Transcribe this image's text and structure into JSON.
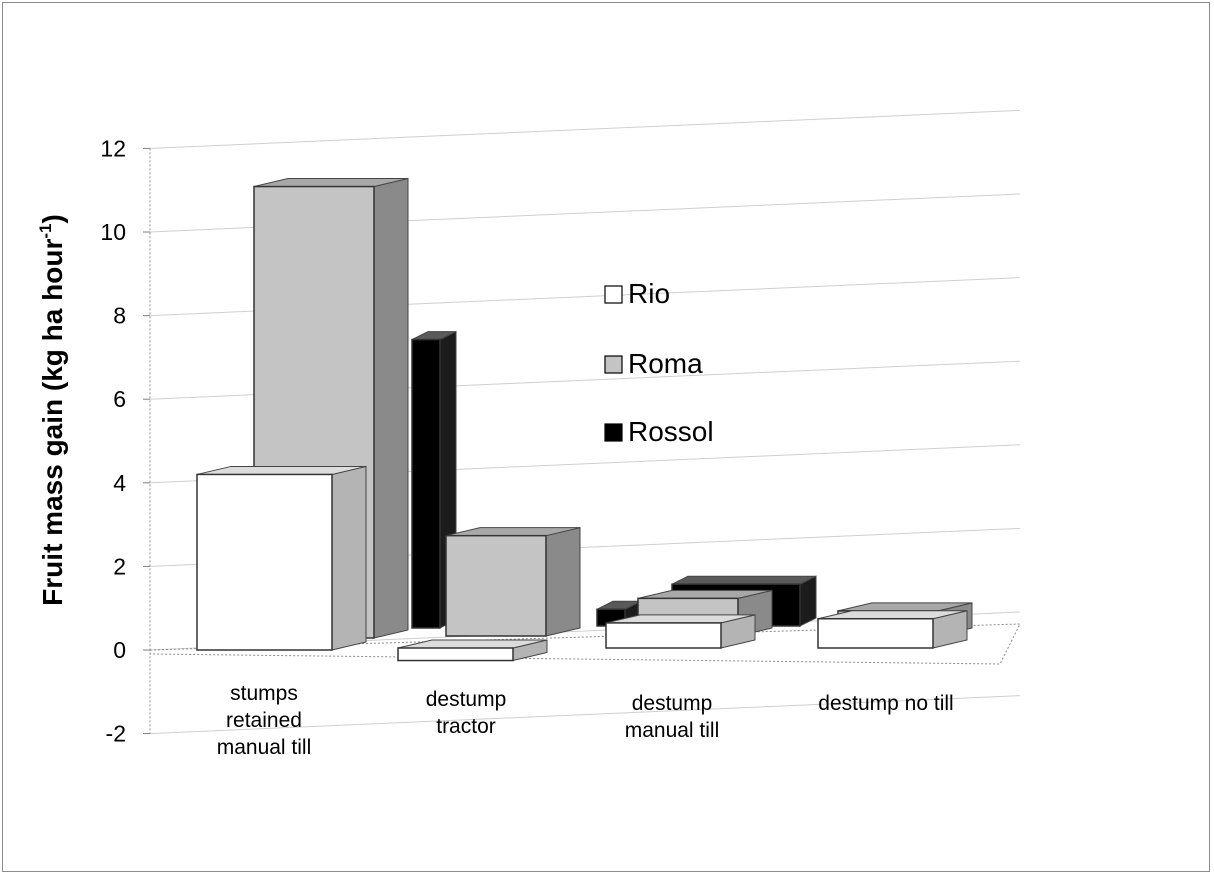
{
  "chart_data": {
    "type": "bar",
    "view": "3d-clustered",
    "title": "",
    "xlabel": "",
    "ylabel": "Fruit mass gain (kg ha hour",
    "ylabel_superscript": "-1",
    "ylabel_close": ")",
    "ylim": [
      -2,
      12
    ],
    "yticks": [
      "-2",
      "0",
      "2",
      "4",
      "6",
      "8",
      "10",
      "12"
    ],
    "grid": true,
    "legend_position": "center",
    "categories": [
      [
        "stumps",
        "retained",
        "manual till"
      ],
      [
        "destump",
        "tractor"
      ],
      [
        "destump",
        "manual till"
      ],
      [
        "destump no till"
      ]
    ],
    "series": [
      {
        "name": "Rio",
        "color": "#ffffff",
        "side": "#b4b4b4",
        "top": "#dcdcdc",
        "values": [
          4.2,
          -0.3,
          0.6,
          0.7
        ]
      },
      {
        "name": "Roma",
        "color": "#c4c4c4",
        "side": "#8a8a8a",
        "top": "#a8a8a8",
        "values": [
          10.8,
          2.4,
          0.9,
          0.6
        ]
      },
      {
        "name": "Rossol",
        "color": "#000000",
        "side": "#1c1c1c",
        "top": "#5a5a5a",
        "values": [
          6.9,
          0.4,
          1.0,
          0.1
        ]
      }
    ]
  }
}
